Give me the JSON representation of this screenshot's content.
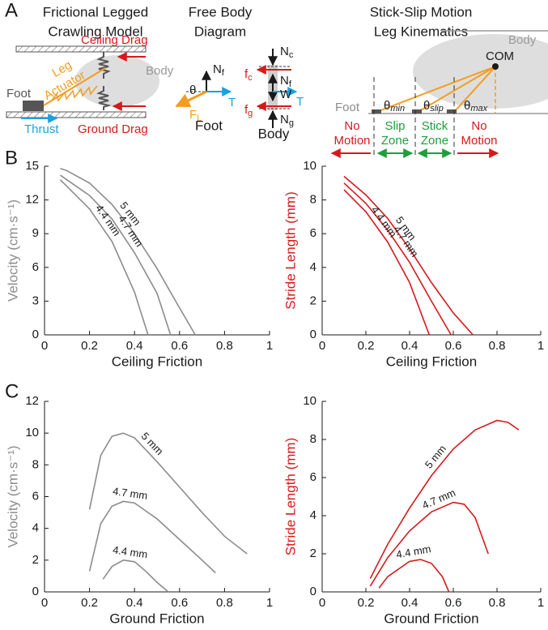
{
  "panel_labels": [
    "A",
    "B",
    "C"
  ],
  "panel_a": {
    "model": {
      "title": [
        "Frictional Legged",
        "Crawling Model"
      ],
      "labels": [
        "Ceiling Drag",
        "Body",
        "Leg",
        "Actuator",
        "Foot",
        "Thrust",
        "Ground Drag"
      ]
    },
    "free_body": {
      "title": [
        "Free Body",
        "Diagram"
      ],
      "foot": "Foot",
      "body": "Body",
      "foot_symbols": [
        {
          "main": "N",
          "sub": "f"
        },
        {
          "main": "θ"
        },
        {
          "main": "F",
          "sub": "L"
        },
        {
          "main": "T"
        }
      ],
      "body_symbols": [
        {
          "main": "N",
          "sub": "c"
        },
        {
          "main": "f",
          "sub": "c"
        },
        {
          "main": "N",
          "sub": "f"
        },
        {
          "main": "W"
        },
        {
          "main": "T"
        },
        {
          "main": "f",
          "sub": "g"
        },
        {
          "main": "N",
          "sub": "g"
        }
      ]
    },
    "kinematics": {
      "title": [
        "Stick-Slip Motion",
        "Leg Kinematics"
      ],
      "body": "Body",
      "com": "COM",
      "foot": "Foot",
      "angles": [
        {
          "main": "θ",
          "sub": "min"
        },
        {
          "main": "θ",
          "sub": "slip"
        },
        {
          "main": "θ",
          "sub": "max"
        }
      ],
      "zones": [
        [
          "No",
          "Motion"
        ],
        [
          "Slip",
          "Zone"
        ],
        [
          "Stick",
          "Zone"
        ],
        [
          "No",
          "Motion"
        ]
      ]
    }
  },
  "chart_data": [
    {
      "type": "line",
      "xlabel": "Ceiling Friction",
      "ylabel": "Velocity (cm·s⁻¹)",
      "ylabel_color": "#8c8c8c",
      "xlim": [
        0,
        1
      ],
      "xticks": [
        0,
        0.2,
        0.4,
        0.6,
        0.8,
        1
      ],
      "ylim": [
        0,
        15
      ],
      "yticks": [
        0,
        3,
        6,
        9,
        12,
        15
      ],
      "series": [
        {
          "name": "5 mm",
          "color": "#8c8c8c",
          "x": [
            0.07,
            0.1,
            0.2,
            0.3,
            0.4,
            0.5,
            0.6,
            0.67
          ],
          "values": [
            14.8,
            14.6,
            13.5,
            11.6,
            9,
            5.9,
            2.4,
            0
          ]
        },
        {
          "name": "4.7 mm",
          "color": "#8c8c8c",
          "x": [
            0.07,
            0.2,
            0.3,
            0.4,
            0.5,
            0.56
          ],
          "values": [
            14.2,
            12.4,
            10.3,
            7.3,
            3.7,
            0
          ]
        },
        {
          "name": "4.4 mm",
          "color": "#8c8c8c",
          "x": [
            0.07,
            0.2,
            0.3,
            0.4,
            0.46
          ],
          "values": [
            13.8,
            11.2,
            8.3,
            3.8,
            0
          ]
        }
      ]
    },
    {
      "type": "line",
      "xlabel": "Ceiling Friction",
      "ylabel": "Stride Length (mm)",
      "ylabel_color": "#d7191c",
      "xlim": [
        0,
        1
      ],
      "xticks": [
        0,
        0.2,
        0.4,
        0.6,
        0.8,
        1
      ],
      "ylim": [
        0,
        10
      ],
      "yticks": [
        0,
        2,
        4,
        6,
        8,
        10
      ],
      "series": [
        {
          "name": "5 mm",
          "color": "#d7191c",
          "x": [
            0.1,
            0.2,
            0.3,
            0.4,
            0.5,
            0.6,
            0.69
          ],
          "values": [
            9.4,
            8.3,
            6.9,
            5.1,
            3.1,
            1.3,
            0
          ]
        },
        {
          "name": "4.7 mm",
          "color": "#d7191c",
          "x": [
            0.1,
            0.2,
            0.3,
            0.4,
            0.5,
            0.59
          ],
          "values": [
            9,
            7.8,
            6.2,
            4.3,
            2,
            0
          ]
        },
        {
          "name": "4.4 mm",
          "color": "#d7191c",
          "x": [
            0.1,
            0.2,
            0.3,
            0.4,
            0.49
          ],
          "values": [
            8.6,
            7.3,
            5.5,
            3.1,
            0
          ]
        }
      ]
    },
    {
      "type": "line",
      "xlabel": "Ground Friction",
      "ylabel": "Velocity (cm·s⁻¹)",
      "ylabel_color": "#8c8c8c",
      "xlim": [
        0,
        1
      ],
      "xticks": [
        0,
        0.2,
        0.4,
        0.6,
        0.8,
        1
      ],
      "ylim": [
        0,
        12
      ],
      "yticks": [
        0,
        2,
        4,
        6,
        8,
        10,
        12
      ],
      "series": [
        {
          "name": "5 mm",
          "color": "#8c8c8c",
          "x": [
            0.2,
            0.25,
            0.3,
            0.35,
            0.4,
            0.5,
            0.6,
            0.7,
            0.8,
            0.9
          ],
          "values": [
            5.2,
            8.6,
            9.8,
            10,
            9.7,
            8.2,
            6.6,
            5,
            3.5,
            2.4
          ]
        },
        {
          "name": "4.7 mm",
          "color": "#8c8c8c",
          "x": [
            0.2,
            0.25,
            0.3,
            0.35,
            0.4,
            0.5,
            0.6,
            0.7,
            0.76
          ],
          "values": [
            1.3,
            4.3,
            5.4,
            5.7,
            5.6,
            4.6,
            3.3,
            2,
            1.2
          ]
        },
        {
          "name": "4.4 mm",
          "color": "#8c8c8c",
          "x": [
            0.26,
            0.3,
            0.35,
            0.4,
            0.45,
            0.5,
            0.55
          ],
          "values": [
            0.8,
            1.6,
            2,
            1.9,
            1.3,
            0.6,
            0
          ]
        }
      ]
    },
    {
      "type": "line",
      "xlabel": "Ground Friction",
      "ylabel": "Stride Length (mm)",
      "ylabel_color": "#d7191c",
      "xlim": [
        0,
        1
      ],
      "xticks": [
        0,
        0.2,
        0.4,
        0.6,
        0.8,
        1
      ],
      "ylim": [
        0,
        10
      ],
      "yticks": [
        0,
        2,
        4,
        6,
        8,
        10
      ],
      "series": [
        {
          "name": "5 mm",
          "color": "#d7191c",
          "x": [
            0.22,
            0.3,
            0.4,
            0.5,
            0.6,
            0.7,
            0.8,
            0.85,
            0.9
          ],
          "values": [
            0.7,
            2.5,
            4.4,
            6.1,
            7.5,
            8.5,
            9,
            8.9,
            8.5
          ]
        },
        {
          "name": "4.7 mm",
          "color": "#d7191c",
          "x": [
            0.22,
            0.3,
            0.4,
            0.5,
            0.6,
            0.65,
            0.7,
            0.76
          ],
          "values": [
            0.3,
            1.8,
            3.2,
            4.2,
            4.7,
            4.6,
            3.9,
            2
          ]
        },
        {
          "name": "4.4 mm",
          "color": "#d7191c",
          "x": [
            0.26,
            0.3,
            0.4,
            0.45,
            0.5,
            0.55,
            0.58
          ],
          "values": [
            0.2,
            0.8,
            1.6,
            1.7,
            1.5,
            0.8,
            0
          ]
        }
      ]
    }
  ]
}
